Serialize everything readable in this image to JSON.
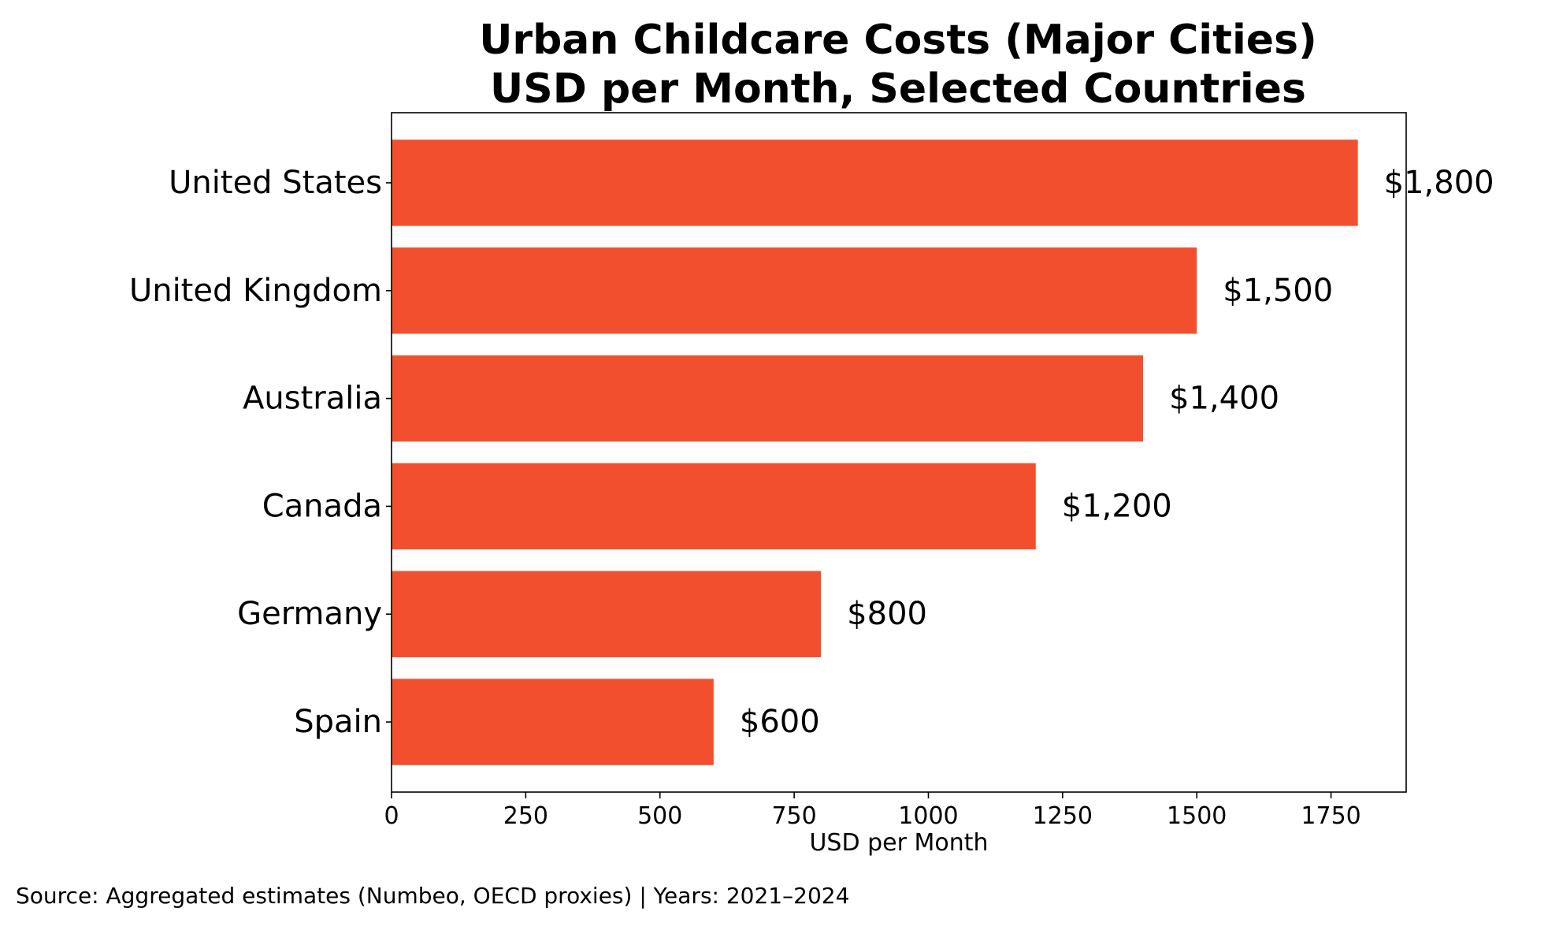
{
  "chart_data": {
    "type": "bar",
    "orientation": "horizontal",
    "title_lines": [
      "Urban Childcare Costs (Major Cities)",
      "USD per Month, Selected Countries"
    ],
    "categories": [
      "United States",
      "United Kingdom",
      "Australia",
      "Canada",
      "Germany",
      "Spain"
    ],
    "values": [
      1800,
      1500,
      1400,
      1200,
      800,
      600
    ],
    "value_labels": [
      "$1,800",
      "$1,500",
      "$1,400",
      "$1,200",
      "$800",
      "$600"
    ],
    "xlabel": "USD per Month",
    "ylabel": "",
    "xlim": [
      0,
      1890
    ],
    "xticks": [
      0,
      250,
      500,
      750,
      1000,
      1250,
      1500,
      1750
    ],
    "xtick_labels": [
      "0",
      "250",
      "500",
      "750",
      "1000",
      "1250",
      "1500",
      "1750"
    ],
    "bar_color": "#f24f2f",
    "grid": false,
    "legend": "none"
  },
  "source_note": "Source: Aggregated estimates (Numbeo, OECD proxies) | Years: 2021–2024"
}
